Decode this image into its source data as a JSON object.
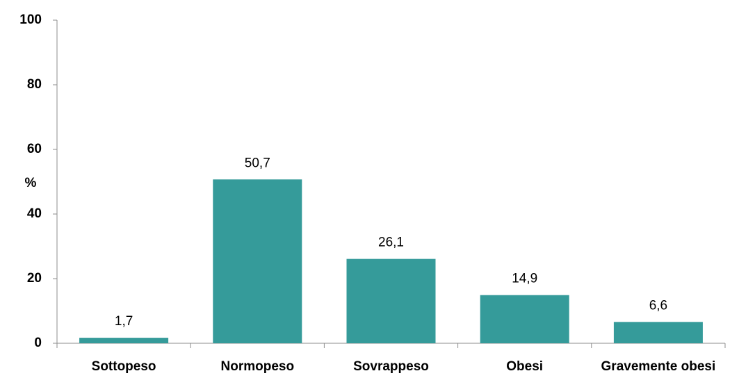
{
  "chart_data": {
    "type": "bar",
    "y_label": "%",
    "categories": [
      "Sottopeso",
      "Normopeso",
      "Sovrappeso",
      "Obesi",
      "Gravemente obesi"
    ],
    "values": [
      1.7,
      50.7,
      26.1,
      14.9,
      6.6
    ],
    "value_labels": [
      "1,7",
      "50,7",
      "26,1",
      "14,9",
      "6,6"
    ],
    "color": "#359b9a",
    "ylim": [
      0,
      100
    ],
    "yticks": [
      0,
      20,
      40,
      60,
      80,
      100
    ],
    "grid": false
  }
}
